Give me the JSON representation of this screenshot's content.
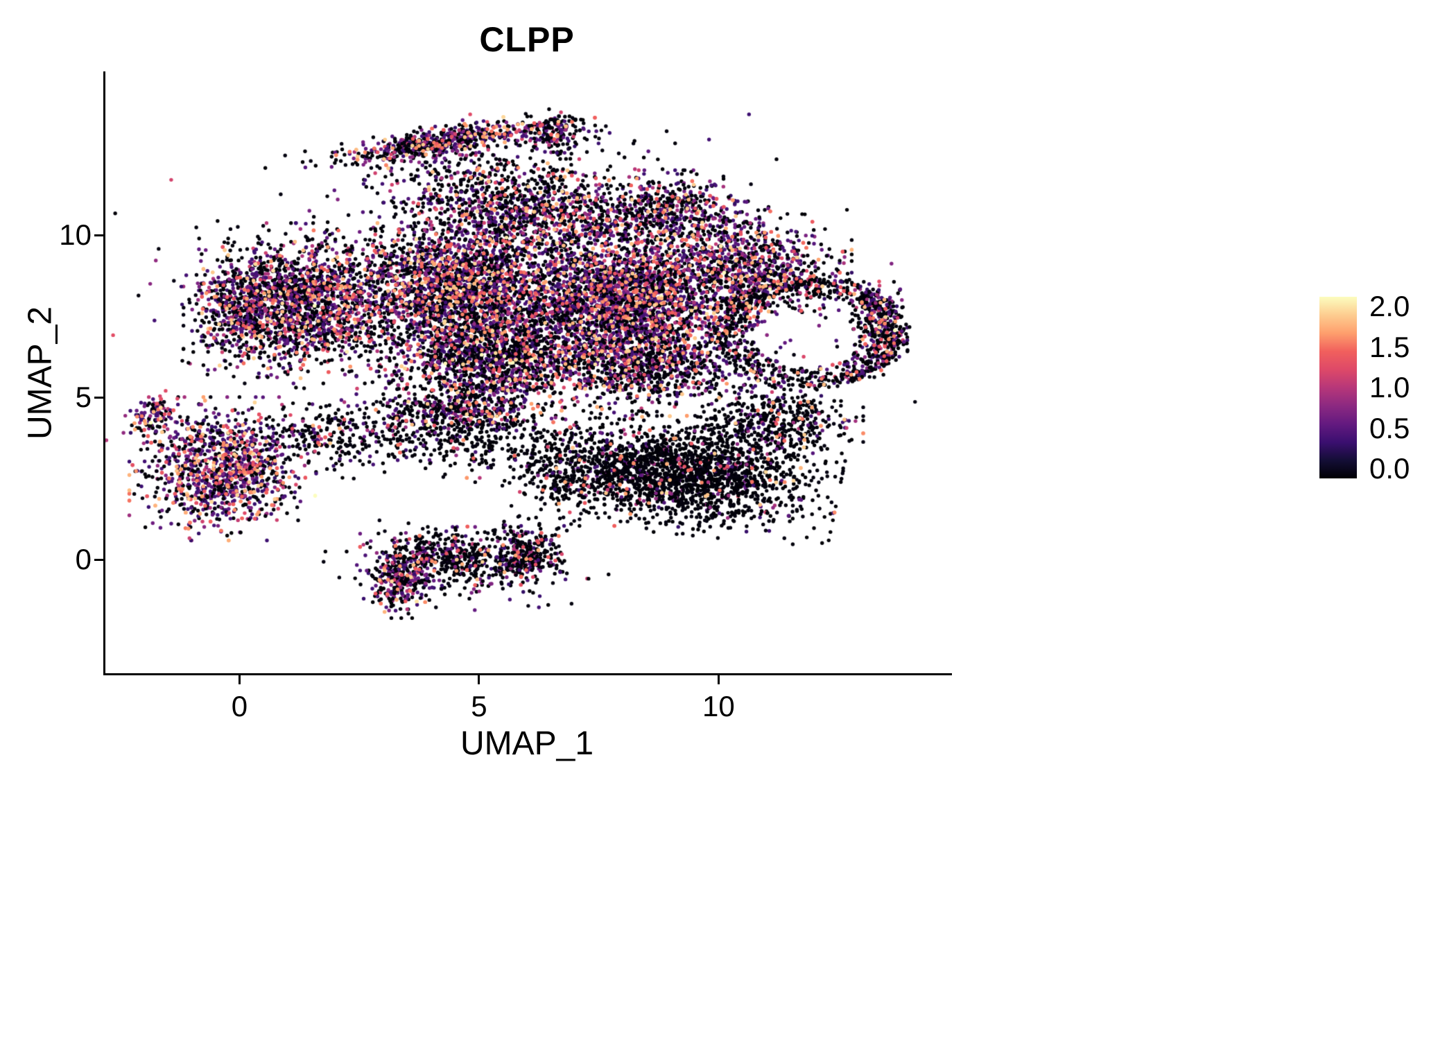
{
  "title": "CLPP",
  "chart_data": {
    "type": "scatter",
    "title": "CLPP",
    "xlabel": "UMAP_1",
    "ylabel": "UMAP_2",
    "xlim": [
      -2.8,
      14.8
    ],
    "ylim": [
      -3.5,
      15.0
    ],
    "x_ticks": [
      0,
      5,
      10
    ],
    "y_ticks": [
      0,
      5,
      10
    ],
    "grid": false,
    "background": "#ffffff",
    "point_radius_px": 2.7,
    "n_points_approx": 19500,
    "colorbar": {
      "range": [
        0,
        2
      ],
      "tick_values": [
        2.0,
        1.5,
        1.0,
        0.5,
        0.0
      ],
      "tick_labels": [
        "2.0",
        "1.5",
        "1.0",
        "0.5",
        "0.0"
      ],
      "colormap_name": "magma",
      "stops": [
        {
          "t": 0.0,
          "color": "#000004"
        },
        {
          "t": 0.1,
          "color": "#140e36"
        },
        {
          "t": 0.2,
          "color": "#3b0f70"
        },
        {
          "t": 0.3,
          "color": "#641a80"
        },
        {
          "t": 0.4,
          "color": "#8c2981"
        },
        {
          "t": 0.5,
          "color": "#b73779"
        },
        {
          "t": 0.6,
          "color": "#de4968"
        },
        {
          "t": 0.7,
          "color": "#f1605d"
        },
        {
          "t": 0.8,
          "color": "#fe9f6d"
        },
        {
          "t": 0.9,
          "color": "#fdcd90"
        },
        {
          "t": 1.0,
          "color": "#fcfdbf"
        }
      ]
    },
    "seed": 42,
    "clusters": [
      {
        "name": "top-arc",
        "shape": "gauss",
        "cx": 4.25,
        "cy": 12.85,
        "sx": 1.15,
        "sy": 0.22,
        "rot": 14,
        "n": 600,
        "zero": 0.5
      },
      {
        "name": "top-arc-right",
        "shape": "gauss",
        "cx": 6.6,
        "cy": 13.05,
        "sx": 0.45,
        "sy": 0.3,
        "rot": 0,
        "n": 160,
        "zero": 0.55
      },
      {
        "name": "top-neck",
        "shape": "gauss",
        "cx": 5.3,
        "cy": 11.7,
        "sx": 1.25,
        "sy": 0.55,
        "rot": 0,
        "n": 360,
        "zero": 0.6
      },
      {
        "name": "main-left",
        "shape": "gauss",
        "cx": 1.3,
        "cy": 7.9,
        "sx": 0.95,
        "sy": 0.95,
        "rot": 0,
        "n": 1700,
        "zero": 0.5
      },
      {
        "name": "main-left-edge",
        "shape": "gauss",
        "cx": -0.1,
        "cy": 7.7,
        "sx": 0.45,
        "sy": 0.8,
        "rot": 0,
        "n": 350,
        "zero": 0.52
      },
      {
        "name": "main-center",
        "shape": "gauss",
        "cx": 4.7,
        "cy": 8.4,
        "sx": 1.1,
        "sy": 1.0,
        "rot": 0,
        "n": 2300,
        "zero": 0.5
      },
      {
        "name": "main-center-low",
        "shape": "gauss",
        "cx": 5.3,
        "cy": 6.1,
        "sx": 1.1,
        "sy": 0.75,
        "rot": 0,
        "n": 1300,
        "zero": 0.55
      },
      {
        "name": "main-right-dense",
        "shape": "gauss",
        "cx": 8.1,
        "cy": 7.9,
        "sx": 1.05,
        "sy": 1.0,
        "rot": 0,
        "n": 2500,
        "zero": 0.4
      },
      {
        "name": "main-right-low",
        "shape": "gauss",
        "cx": 8.6,
        "cy": 5.9,
        "sx": 1.0,
        "sy": 0.6,
        "rot": 0,
        "n": 700,
        "zero": 0.6
      },
      {
        "name": "main-top-mid",
        "shape": "gauss",
        "cx": 6.3,
        "cy": 10.6,
        "sx": 1.3,
        "sy": 0.55,
        "rot": 0,
        "n": 800,
        "zero": 0.55
      },
      {
        "name": "main-top-right",
        "shape": "gauss",
        "cx": 9.0,
        "cy": 10.7,
        "sx": 0.8,
        "sy": 0.5,
        "rot": 0,
        "n": 500,
        "zero": 0.5
      },
      {
        "name": "right-upper",
        "shape": "gauss",
        "cx": 10.7,
        "cy": 9.0,
        "sx": 0.8,
        "sy": 0.7,
        "rot": 0,
        "n": 800,
        "zero": 0.5
      },
      {
        "name": "right-ring",
        "shape": "annulus",
        "cx": 11.9,
        "cy": 7.0,
        "rx": 2.0,
        "ry": 1.7,
        "inner": 0.58,
        "n": 850,
        "zero": 0.72
      },
      {
        "name": "right-tip",
        "shape": "gauss",
        "cx": 13.3,
        "cy": 7.3,
        "sx": 0.3,
        "sy": 0.7,
        "rot": 0,
        "n": 200,
        "zero": 0.6
      },
      {
        "name": "bottom-right-mass",
        "shape": "gauss",
        "cx": 9.3,
        "cy": 2.6,
        "sx": 1.25,
        "sy": 0.7,
        "rot": -8,
        "n": 1900,
        "zero": 0.88
      },
      {
        "name": "bottom-right-upper",
        "shape": "gauss",
        "cx": 11.2,
        "cy": 4.2,
        "sx": 0.7,
        "sy": 0.55,
        "rot": 0,
        "n": 450,
        "zero": 0.8
      },
      {
        "name": "bottom-right-west",
        "shape": "gauss",
        "cx": 7.0,
        "cy": 2.6,
        "sx": 0.8,
        "sy": 0.6,
        "rot": 0,
        "n": 300,
        "zero": 0.85
      },
      {
        "name": "left-island",
        "shape": "gauss",
        "cx": -0.35,
        "cy": 2.8,
        "sx": 0.75,
        "sy": 0.85,
        "rot": 0,
        "n": 1150,
        "zero": 0.35,
        "hot": 0.06
      },
      {
        "name": "left-island-tail",
        "shape": "gauss",
        "cx": -1.8,
        "cy": 4.45,
        "sx": 0.22,
        "sy": 0.3,
        "rot": -30,
        "n": 110,
        "zero": 0.4
      },
      {
        "name": "mid-band",
        "shape": "gauss",
        "cx": 4.6,
        "cy": 3.8,
        "sx": 1.5,
        "sy": 0.5,
        "rot": 0,
        "n": 420,
        "zero": 0.82
      },
      {
        "name": "mid-band-dense",
        "shape": "gauss",
        "cx": 4.6,
        "cy": 4.6,
        "sx": 0.75,
        "sy": 0.3,
        "rot": 0,
        "n": 320,
        "zero": 0.55
      },
      {
        "name": "left-mid-sparse",
        "shape": "gauss",
        "cx": 1.9,
        "cy": 4.0,
        "sx": 0.7,
        "sy": 0.5,
        "rot": 0,
        "n": 180,
        "zero": 0.75
      },
      {
        "name": "bottom-a",
        "shape": "gauss",
        "cx": 3.35,
        "cy": -0.5,
        "sx": 0.32,
        "sy": 0.5,
        "rot": 0,
        "n": 330,
        "zero": 0.5
      },
      {
        "name": "bottom-b",
        "shape": "gauss",
        "cx": 4.4,
        "cy": 0.1,
        "sx": 0.5,
        "sy": 0.35,
        "rot": 0,
        "n": 260,
        "zero": 0.7
      },
      {
        "name": "bottom-c",
        "shape": "gauss",
        "cx": 5.9,
        "cy": 0.15,
        "sx": 0.42,
        "sy": 0.45,
        "rot": 0,
        "n": 330,
        "zero": 0.72
      },
      {
        "name": "bottom-sparse",
        "shape": "gauss",
        "cx": 4.8,
        "cy": -0.2,
        "sx": 1.2,
        "sy": 0.6,
        "rot": 0,
        "n": 180,
        "zero": 0.75
      },
      {
        "name": "field-scatter",
        "shape": "gauss",
        "cx": 6.5,
        "cy": 8.0,
        "sx": 3.6,
        "sy": 2.2,
        "rot": 0,
        "n": 520,
        "zero": 0.6
      }
    ]
  }
}
